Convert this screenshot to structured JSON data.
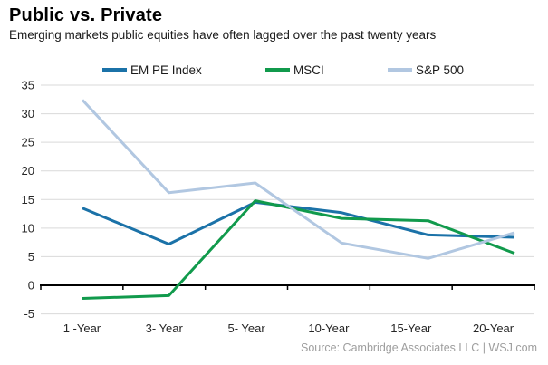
{
  "header": {
    "title": "Public vs. Private",
    "subtitle": "Emerging markets public equities have often lagged over the past twenty years"
  },
  "legend": [
    {
      "label": "EM PE Index",
      "color": "#1b72a8"
    },
    {
      "label": "MSCI",
      "color": "#119a4c"
    },
    {
      "label": "S&P 500",
      "color": "#b1c7e1"
    }
  ],
  "footer": {
    "source": "Source: Cambridge Associates LLC  |  WSJ.com"
  },
  "colors": {
    "gridline": "#d9d9d9",
    "zero_axis": "#000000",
    "axis_text": "#262626",
    "source_text": "#9e9e9e"
  },
  "chart_data": {
    "type": "line",
    "title": "Public vs. Private",
    "subtitle": "Emerging markets public equities have often lagged over the past twenty years",
    "categories": [
      "1 -Year",
      "3- Year",
      "5- Year",
      "10-Year",
      "15-Year",
      "20-Year"
    ],
    "series": [
      {
        "name": "EM PE Index",
        "color": "#1b72a8",
        "values": [
          13.5,
          7.2,
          14.5,
          12.7,
          8.8,
          8.4
        ]
      },
      {
        "name": "MSCI",
        "color": "#119a4c",
        "values": [
          -2.3,
          -1.8,
          14.8,
          11.7,
          11.3,
          5.6
        ]
      },
      {
        "name": "S&P 500",
        "color": "#b1c7e1",
        "values": [
          32.4,
          16.2,
          17.9,
          7.4,
          4.7,
          9.2
        ]
      }
    ],
    "xlabel": "",
    "ylabel": "",
    "ylim": [
      -5,
      35
    ],
    "ytick_step": 5,
    "grid": true,
    "legend_position": "top",
    "source": "Source: Cambridge Associates LLC  |  WSJ.com"
  }
}
